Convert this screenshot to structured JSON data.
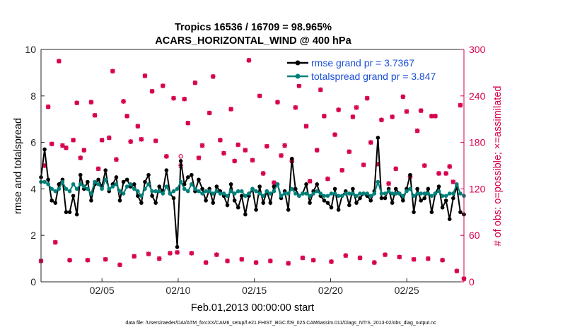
{
  "chart_data": {
    "type": "line",
    "title": "Tropics 16536 / 16709 = 98.965%",
    "subtitle": "ACARS_HORIZONTAL_WIND @ 400 hPa",
    "xlabel": "Feb.01,2013 00:00:00 start",
    "ylabel": "rmse and totalspread",
    "y2label": "# of obs: o=possible; ×=assimilated",
    "x_ticks": [
      "02/05",
      "02/10",
      "02/15",
      "02/20",
      "02/25"
    ],
    "x_tick_days": [
      5,
      10,
      15,
      20,
      25
    ],
    "xlim": [
      1,
      28.75
    ],
    "ylim": [
      0,
      10
    ],
    "y_ticks": [
      "0",
      "2",
      "4",
      "6",
      "8",
      "10"
    ],
    "y2lim": [
      0,
      300
    ],
    "y2_ticks": [
      "0",
      "60",
      "120",
      "180",
      "240",
      "300"
    ],
    "legend_position": "top-right",
    "series": [
      {
        "name": "rmse grand pr = 3.7367",
        "color": "#000000",
        "marker": "dot",
        "axis": "left",
        "values": [
          4.5,
          5.7,
          4.4,
          3.5,
          3.4,
          4.2,
          4.4,
          3.0,
          3.0,
          3.7,
          2.9,
          4.6,
          4.0,
          4.3,
          3.5,
          4.2,
          4.4,
          4.1,
          4.8,
          3.9,
          4.2,
          4.5,
          3.5,
          4.3,
          4.4,
          4.1,
          4.2,
          3.7,
          3.4,
          4.3,
          4.6,
          3.7,
          3.4,
          4.1,
          3.9,
          4.8,
          3.8,
          3.6,
          1.5,
          5.2,
          4.2,
          4.5,
          4.6,
          3.9,
          4.4,
          4.0,
          3.5,
          4.0,
          3.4,
          4.1,
          3.9,
          3.7,
          3.3,
          4.2,
          3.5,
          3.2,
          3.7,
          2.9,
          3.7,
          4.0,
          3.1,
          4.1,
          3.4,
          3.9,
          3.4,
          4.1,
          4.2,
          3.6,
          3.9,
          3.1,
          5.3,
          4.0,
          3.7,
          3.8,
          4.2,
          3.4,
          3.9,
          4.2,
          3.7,
          3.5,
          3.4,
          3.2,
          4.0,
          3.1,
          3.7,
          3.9,
          3.3,
          4.0,
          3.4,
          3.6,
          3.8,
          3.7,
          3.5,
          3.9,
          6.2,
          3.6,
          3.6,
          4.0,
          3.4,
          4.0,
          3.8,
          3.5,
          4.0,
          4.6,
          3.0,
          4.0,
          3.5,
          3.6,
          4.0,
          3.0,
          3.8,
          4.1,
          3.2,
          3.5,
          2.7,
          3.6,
          4.1,
          3.0,
          2.9
        ]
      },
      {
        "name": "totalspread grand pr = 3.847",
        "color": "#00807a",
        "marker": "dot",
        "axis": "left",
        "values": [
          4.3,
          4.3,
          4.2,
          4.0,
          3.9,
          4.0,
          4.3,
          4.0,
          3.9,
          4.2,
          4.0,
          4.2,
          4.1,
          4.0,
          3.8,
          4.3,
          4.2,
          4.0,
          4.4,
          4.0,
          4.1,
          4.2,
          3.9,
          3.8,
          4.1,
          4.2,
          4.0,
          3.9,
          3.7,
          4.0,
          4.2,
          3.9,
          3.9,
          3.9,
          3.8,
          4.1,
          3.8,
          3.9,
          4.0,
          4.3,
          4.0,
          3.9,
          4.2,
          4.0,
          3.9,
          3.8,
          3.9,
          3.9,
          3.8,
          3.9,
          3.8,
          3.8,
          3.7,
          3.9,
          3.8,
          3.9,
          3.9,
          3.7,
          3.8,
          4.0,
          3.9,
          3.8,
          3.7,
          3.9,
          3.8,
          3.9,
          4.2,
          3.7,
          3.8,
          3.8,
          4.0,
          3.8,
          3.7,
          3.8,
          3.8,
          3.7,
          3.8,
          3.9,
          3.8,
          3.7,
          3.7,
          3.8,
          3.8,
          3.7,
          3.7,
          3.8,
          3.8,
          3.8,
          3.7,
          3.8,
          3.8,
          3.8,
          3.7,
          3.8,
          4.3,
          3.8,
          3.8,
          3.9,
          3.8,
          3.8,
          3.8,
          3.7,
          3.9,
          4.0,
          3.7,
          3.8,
          3.8,
          3.8,
          3.8,
          3.7,
          3.8,
          3.9,
          3.7,
          3.7,
          3.8,
          3.8,
          4.2,
          3.8,
          3.7
        ]
      },
      {
        "name": "obs possible",
        "color": "#d6004f",
        "marker": "circle",
        "axis": "right",
        "values": [
          27,
          150,
          226,
          178,
          51,
          285,
          176,
          173,
          28,
          183,
          231,
          160,
          170,
          28,
          232,
          215,
          146,
          183,
          29,
          186,
          272,
          158,
          22,
          233,
          214,
          181,
          33,
          201,
          184,
          266,
          36,
          246,
          182,
          30,
          253,
          162,
          37,
          237,
          38,
          162,
          236,
          205,
          37,
          257,
          160,
          176,
          25,
          218,
          265,
          35,
          183,
          166,
          27,
          223,
          156,
          177,
          29,
          170,
          286,
          157,
          25,
          240,
          140,
          175,
          27,
          128,
          232,
          163,
          176,
          24,
          156,
          225,
          253,
          31,
          201,
          130,
          28,
          170,
          248,
          214,
          133,
          26,
          190,
          222,
          144,
          34,
          168,
          213,
          225,
          31,
          151,
          237,
          180,
          25,
          152,
          209,
          35,
          127,
          213,
          146,
          32,
          239,
          220,
          136,
          29,
          195,
          221,
          150,
          30,
          214,
          214,
          140,
          28,
          140,
          149,
          129,
          14,
          228,
          4
        ]
      },
      {
        "name": "obs assimilated",
        "color": "#d6004f",
        "marker": "x",
        "axis": "right",
        "values": [
          27,
          150,
          226,
          178,
          51,
          285,
          176,
          173,
          28,
          183,
          231,
          160,
          170,
          28,
          232,
          215,
          146,
          183,
          29,
          186,
          272,
          158,
          22,
          233,
          214,
          181,
          33,
          201,
          184,
          266,
          36,
          246,
          182,
          30,
          253,
          162,
          37,
          237,
          38,
          150,
          236,
          205,
          37,
          257,
          160,
          176,
          25,
          218,
          265,
          35,
          183,
          166,
          27,
          223,
          156,
          177,
          29,
          170,
          286,
          157,
          25,
          240,
          140,
          175,
          27,
          128,
          232,
          163,
          176,
          24,
          156,
          225,
          253,
          31,
          201,
          130,
          28,
          170,
          248,
          214,
          133,
          26,
          190,
          222,
          144,
          34,
          168,
          213,
          225,
          31,
          151,
          237,
          180,
          25,
          152,
          209,
          35,
          127,
          213,
          146,
          32,
          239,
          220,
          136,
          29,
          195,
          221,
          150,
          30,
          214,
          214,
          140,
          28,
          140,
          149,
          129,
          14,
          228,
          4
        ]
      }
    ],
    "colors": {
      "axis_left": "#000000",
      "axis_right": "#d6004f",
      "legend_text": "#1a4fd6"
    }
  },
  "footnote": "data file: /Users/raeder/DAI/ATM_forcXX/CAM6_setup/f.e21.FHIST_BGC.f09_025.CAM6assim.011/Diags_NTrS_2013-02/obs_diag_output.nc"
}
